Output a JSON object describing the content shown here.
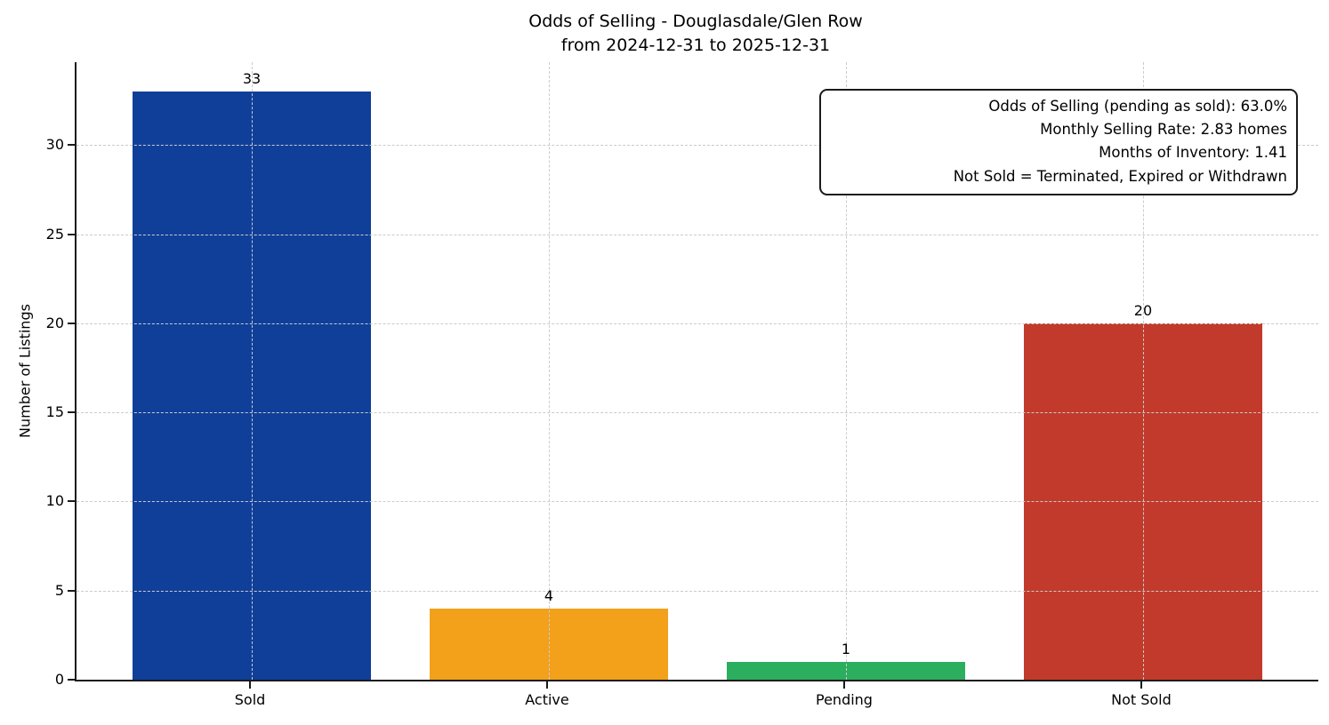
{
  "chart_data": {
    "type": "bar",
    "title": "Odds of Selling - Douglasdale/Glen Row",
    "subtitle": "from 2024-12-31 to 2025-12-31",
    "categories": [
      "Sold",
      "Active",
      "Pending",
      "Not Sold"
    ],
    "values": [
      33,
      4,
      1,
      20
    ],
    "bar_colors": [
      "#103f9a",
      "#f3a01a",
      "#2bae5e",
      "#c23a2b"
    ],
    "value_labels": [
      "33",
      "4",
      "1",
      "20"
    ],
    "xlabel": "",
    "ylabel": "Number of Listings",
    "ylim": [
      0,
      34.65
    ],
    "yticks": [
      0,
      5,
      10,
      15,
      20,
      25,
      30
    ],
    "grid": true,
    "grid_style": "dashed",
    "legend": "none",
    "annotation_lines": [
      "Odds of Selling (pending as sold): 63.0%",
      "Monthly Selling Rate: 2.83 homes",
      "Months of Inventory: 1.41",
      "Not Sold = Terminated, Expired or Withdrawn"
    ]
  }
}
